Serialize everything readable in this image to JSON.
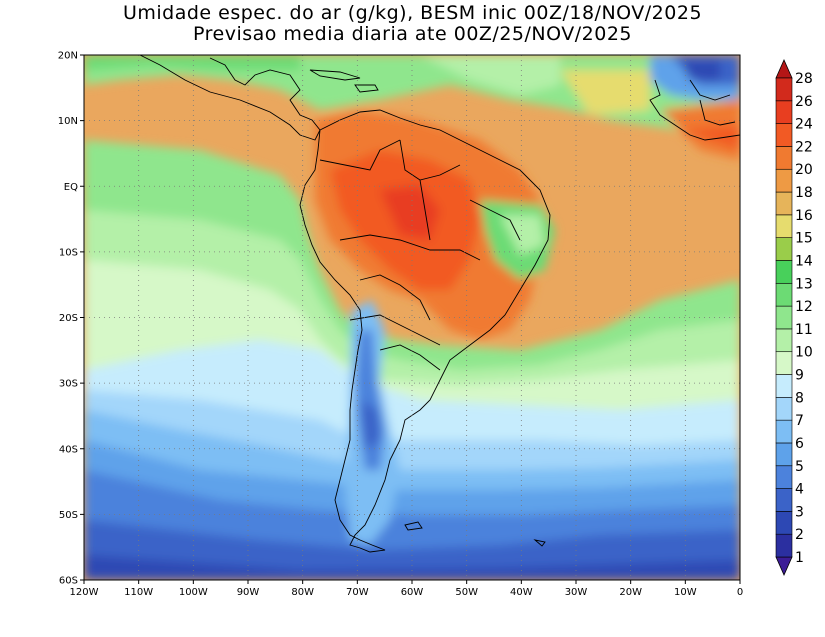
{
  "title": {
    "line1": "Umidade espec. do ar (g/kg), BESM inic 00Z/18/NOV/2025",
    "line2": "Previsao media diaria ate 00Z/25/NOV/2025"
  },
  "map": {
    "lon_range": [
      -120,
      0
    ],
    "lat_range": [
      -60,
      20
    ],
    "lat_labels": [
      "20N",
      "10N",
      "EQ",
      "10S",
      "20S",
      "30S",
      "40S",
      "50S",
      "60S"
    ],
    "lon_labels": [
      "120W",
      "110W",
      "100W",
      "90W",
      "80W",
      "70W",
      "60W",
      "50W",
      "40W",
      "30W",
      "20W",
      "10W",
      "0"
    ],
    "gridlines": "dotted"
  },
  "colorbar": {
    "levels": [
      "1",
      "2",
      "3",
      "4",
      "5",
      "6",
      "7",
      "8",
      "9",
      "10",
      "11",
      "12",
      "13",
      "14",
      "15",
      "16",
      "18",
      "20",
      "22",
      "24",
      "26",
      "28"
    ],
    "colors": [
      "#3c1c96",
      "#2b2fa0",
      "#2d48b4",
      "#3b63c8",
      "#4c82dc",
      "#5ea2ea",
      "#7dbef4",
      "#a3d6fa",
      "#c6ecfd",
      "#d6f8c8",
      "#b4f0a8",
      "#8fe68d",
      "#6cdb74",
      "#48d05b",
      "#9acd4a",
      "#e6dc6e",
      "#e6b45a",
      "#ee9a44",
      "#f07a30",
      "#f25a24",
      "#e83e20",
      "#d22a1c",
      "#b41616"
    ]
  }
}
